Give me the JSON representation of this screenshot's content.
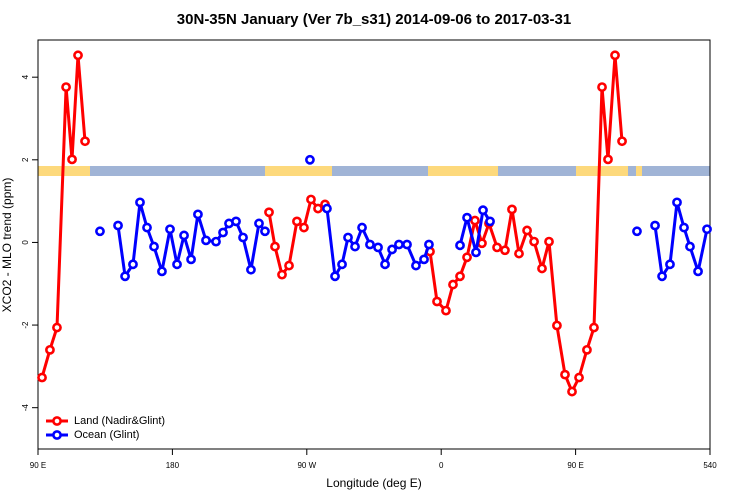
{
  "chart_data": {
    "type": "line",
    "title": "30N-35N January (Ver 7b_s31)   2014-09-06 to 2017-03-31",
    "x_label": "Longitude (deg E)",
    "y_label": "XCO2 - MLO trend (ppm)",
    "xlim": [
      90,
      540
    ],
    "ylim": [
      -5,
      4.9
    ],
    "xticks": [
      {
        "value": 90,
        "label": "90 E"
      },
      180,
      {
        "value": 270,
        "label": "90 W"
      },
      {
        "value": 360,
        "label": "0"
      },
      {
        "value": 450,
        "label": "90 E"
      },
      540
    ],
    "yticks": [
      -4,
      -2,
      0,
      2,
      4
    ],
    "legend": "lower left",
    "series": [
      {
        "name": "Land (Nadir&Glint)",
        "color": "#ff0000",
        "x": [
          92.7,
          98.0,
          102.7,
          108.8,
          112.8,
          116.8,
          121.5,
          null,
          244.7,
          248.7,
          253.4,
          258.1,
          263.4,
          268.1,
          272.8,
          277.5,
          282.2,
          null,
          352.5,
          357.2,
          363.2,
          367.9,
          372.6,
          377.3,
          382.6,
          387.3,
          392.0,
          397.4,
          402.7,
          407.4,
          412.1,
          417.5,
          422.2,
          427.5,
          432.2,
          437.5,
          442.9,
          447.6,
          452.3,
          457.6,
          462.3,
          467.7,
          471.7,
          476.4,
          481.1
        ],
        "values": [
          -3.27,
          -2.6,
          -2.06,
          3.76,
          2.01,
          4.53,
          2.45,
          null,
          0.73,
          -0.1,
          -0.78,
          -0.56,
          0.51,
          0.36,
          1.04,
          0.82,
          0.92,
          null,
          -0.22,
          -1.43,
          -1.65,
          -1.02,
          -0.82,
          -0.36,
          0.53,
          -0.02,
          0.46,
          -0.12,
          -0.19,
          0.8,
          -0.27,
          0.29,
          0.02,
          -0.63,
          0.02,
          -2.01,
          -3.2,
          -3.61,
          -3.27,
          -2.6,
          -2.06,
          3.76,
          2.01,
          4.53,
          2.45
        ]
      },
      {
        "name": "Ocean (Glint)",
        "color": "#0000ff",
        "x": [
          131.5,
          null,
          143.6,
          148.3,
          153.6,
          158.3,
          163.0,
          167.7,
          173.0,
          178.4,
          183.1,
          187.8,
          192.5,
          197.1,
          202.5,
          209.2,
          213.9,
          217.9,
          222.6,
          227.3,
          232.6,
          238.0,
          242.0,
          null,
          272.1,
          null,
          283.5,
          288.9,
          293.6,
          297.6,
          302.3,
          307.0,
          312.3,
          317.7,
          322.4,
          327.1,
          331.7,
          337.1,
          343.1,
          348.5,
          351.8,
          null,
          372.6,
          377.3,
          383.3,
          388.0,
          392.7,
          null,
          491.1,
          null,
          503.2,
          507.9,
          513.2,
          517.9,
          522.6,
          526.6,
          532.0,
          538.0
        ],
        "values": [
          0.27,
          null,
          0.41,
          -0.82,
          -0.53,
          0.97,
          0.36,
          -0.1,
          -0.7,
          0.32,
          -0.53,
          0.17,
          -0.41,
          0.68,
          0.05,
          0.02,
          0.24,
          0.46,
          0.51,
          0.12,
          -0.66,
          0.46,
          0.27,
          null,
          2.0,
          null,
          0.82,
          -0.82,
          -0.53,
          0.12,
          -0.1,
          0.36,
          -0.05,
          -0.12,
          -0.53,
          -0.17,
          -0.05,
          -0.05,
          -0.56,
          -0.41,
          -0.05,
          null,
          -0.07,
          0.6,
          -0.24,
          0.78,
          0.51,
          null,
          0.27,
          null,
          0.41,
          -0.82,
          -0.53,
          0.97,
          0.36,
          -0.1,
          -0.7,
          0.32
        ]
      }
    ]
  }
}
